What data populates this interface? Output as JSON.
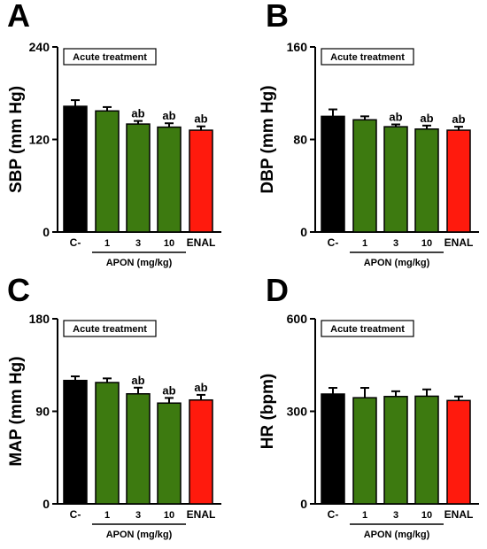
{
  "chart_data": [
    {
      "panel": "A",
      "type": "bar",
      "annotation_box": "Acute treatment",
      "ylabel": "SBP (mm Hg)",
      "ylim": [
        0,
        240
      ],
      "yticks": [
        "0",
        "120",
        "240"
      ],
      "categories": [
        "C-",
        "1",
        "3",
        "10",
        "ENAL"
      ],
      "group_label": "APON (mg/kg)",
      "values": [
        163,
        157,
        140,
        136,
        132
      ],
      "errors": [
        8,
        5,
        4,
        5,
        5
      ],
      "colors": [
        "#000000",
        "#3d7a10",
        "#3d7a10",
        "#3d7a10",
        "#ff1a0d"
      ],
      "significance": [
        "",
        "",
        "ab",
        "ab",
        "ab"
      ]
    },
    {
      "panel": "B",
      "type": "bar",
      "annotation_box": "Acute treatment",
      "ylabel": "DBP (mm Hg)",
      "ylim": [
        0,
        160
      ],
      "yticks": [
        "0",
        "80",
        "160"
      ],
      "categories": [
        "C-",
        "1",
        "3",
        "10",
        "ENAL"
      ],
      "group_label": "APON (mg/kg)",
      "values": [
        100,
        97,
        91,
        89,
        88
      ],
      "errors": [
        6,
        3,
        2,
        3,
        3
      ],
      "colors": [
        "#000000",
        "#3d7a10",
        "#3d7a10",
        "#3d7a10",
        "#ff1a0d"
      ],
      "significance": [
        "",
        "",
        "ab",
        "ab",
        "ab"
      ]
    },
    {
      "panel": "C",
      "type": "bar",
      "annotation_box": "Acute treatment",
      "ylabel": "MAP (mm Hg)",
      "ylim": [
        0,
        180
      ],
      "yticks": [
        "0",
        "90",
        "180"
      ],
      "categories": [
        "C-",
        "1",
        "3",
        "10",
        "ENAL"
      ],
      "group_label": "APON (mg/kg)",
      "values": [
        120,
        118,
        107,
        98,
        101
      ],
      "errors": [
        4,
        4,
        6,
        5,
        5
      ],
      "colors": [
        "#000000",
        "#3d7a10",
        "#3d7a10",
        "#3d7a10",
        "#ff1a0d"
      ],
      "significance": [
        "",
        "",
        "ab",
        "ab",
        "ab"
      ]
    },
    {
      "panel": "D",
      "type": "bar",
      "annotation_box": "Acute treatment",
      "ylabel": "HR (bpm)",
      "ylim": [
        0,
        600
      ],
      "yticks": [
        "0",
        "300",
        "600"
      ],
      "categories": [
        "C-",
        "1",
        "3",
        "10",
        "ENAL"
      ],
      "group_label": "APON (mg/kg)",
      "values": [
        356,
        344,
        348,
        349,
        335
      ],
      "errors": [
        20,
        32,
        17,
        22,
        13
      ],
      "colors": [
        "#000000",
        "#3d7a10",
        "#3d7a10",
        "#3d7a10",
        "#ff1a0d"
      ],
      "significance": [
        "",
        "",
        "",
        "",
        ""
      ]
    }
  ]
}
